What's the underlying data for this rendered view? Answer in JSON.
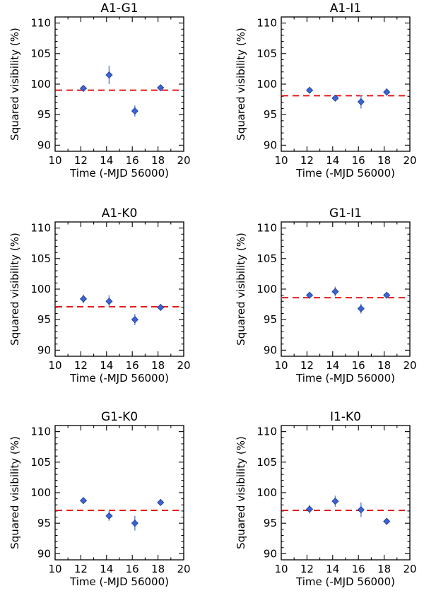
{
  "chart_data": [
    {
      "type": "scatter",
      "title": "A1-G1",
      "xlabel": "Time (-MJD 56000)",
      "ylabel": "Squared visibility (%)",
      "xlim": [
        10,
        20
      ],
      "ylim": [
        89,
        111
      ],
      "xticks": [
        10,
        12,
        14,
        16,
        18,
        20
      ],
      "yticks": [
        90,
        95,
        100,
        105,
        110
      ],
      "reference": 99.0,
      "points": [
        {
          "x": 12.2,
          "y": 99.3,
          "err": 0.3
        },
        {
          "x": 14.2,
          "y": 101.5,
          "err": 1.5
        },
        {
          "x": 16.2,
          "y": 95.6,
          "err": 0.9
        },
        {
          "x": 18.2,
          "y": 99.4,
          "err": 0.3
        }
      ]
    },
    {
      "type": "scatter",
      "title": "A1-I1",
      "xlabel": "Time (-MJD 56000)",
      "ylabel": "Squared visibility (%)",
      "xlim": [
        10,
        20
      ],
      "ylim": [
        89,
        111
      ],
      "xticks": [
        10,
        12,
        14,
        16,
        18,
        20
      ],
      "yticks": [
        90,
        95,
        100,
        105,
        110
      ],
      "reference": 98.1,
      "points": [
        {
          "x": 12.2,
          "y": 99.0,
          "err": 0.5
        },
        {
          "x": 14.2,
          "y": 97.7,
          "err": 0.5
        },
        {
          "x": 16.2,
          "y": 97.1,
          "err": 1.1
        },
        {
          "x": 18.2,
          "y": 98.7,
          "err": 0.6
        }
      ]
    },
    {
      "type": "scatter",
      "title": "A1-K0",
      "xlabel": "Time (-MJD 56000)",
      "ylabel": "Squared visibility (%)",
      "xlim": [
        10,
        20
      ],
      "ylim": [
        89,
        111
      ],
      "xticks": [
        10,
        12,
        14,
        16,
        18,
        20
      ],
      "yticks": [
        90,
        95,
        100,
        105,
        110
      ],
      "reference": 97.1,
      "points": [
        {
          "x": 12.2,
          "y": 98.4,
          "err": 0.7
        },
        {
          "x": 14.2,
          "y": 98.0,
          "err": 1.0
        },
        {
          "x": 16.2,
          "y": 95.0,
          "err": 0.9
        },
        {
          "x": 18.2,
          "y": 97.0,
          "err": 0.5
        }
      ]
    },
    {
      "type": "scatter",
      "title": "G1-I1",
      "xlabel": "Time (-MJD 56000)",
      "ylabel": "Squared visibility (%)",
      "xlim": [
        10,
        20
      ],
      "ylim": [
        89,
        111
      ],
      "xticks": [
        10,
        12,
        14,
        16,
        18,
        20
      ],
      "yticks": [
        90,
        95,
        100,
        105,
        110
      ],
      "reference": 98.6,
      "points": [
        {
          "x": 12.2,
          "y": 99.0,
          "err": 0.3
        },
        {
          "x": 14.2,
          "y": 99.6,
          "err": 0.8
        },
        {
          "x": 16.2,
          "y": 96.8,
          "err": 0.8
        },
        {
          "x": 18.2,
          "y": 99.0,
          "err": 0.3
        }
      ]
    },
    {
      "type": "scatter",
      "title": "G1-K0",
      "xlabel": "Time (-MJD 56000)",
      "ylabel": "Squared visibility (%)",
      "xlim": [
        10,
        20
      ],
      "ylim": [
        89,
        111
      ],
      "xticks": [
        10,
        12,
        14,
        16,
        18,
        20
      ],
      "yticks": [
        90,
        95,
        100,
        105,
        110
      ],
      "reference": 97.1,
      "points": [
        {
          "x": 12.2,
          "y": 98.7,
          "err": 0.3
        },
        {
          "x": 14.2,
          "y": 96.2,
          "err": 0.8
        },
        {
          "x": 16.2,
          "y": 95.0,
          "err": 1.2
        },
        {
          "x": 18.2,
          "y": 98.4,
          "err": 0.3
        }
      ]
    },
    {
      "type": "scatter",
      "title": "I1-K0",
      "xlabel": "Time (-MJD 56000)",
      "ylabel": "Squared visibility (%)",
      "xlim": [
        10,
        20
      ],
      "ylim": [
        89,
        111
      ],
      "xticks": [
        10,
        12,
        14,
        16,
        18,
        20
      ],
      "yticks": [
        90,
        95,
        100,
        105,
        110
      ],
      "reference": 97.1,
      "points": [
        {
          "x": 12.2,
          "y": 97.3,
          "err": 0.7
        },
        {
          "x": 14.2,
          "y": 98.6,
          "err": 0.9
        },
        {
          "x": 16.2,
          "y": 97.2,
          "err": 1.2
        },
        {
          "x": 18.2,
          "y": 95.3,
          "err": 0.3
        }
      ]
    }
  ],
  "colors": {
    "reference_line": "#e41a1c",
    "marker_fill": "#3b64d3",
    "error_bar": "#6f8fd6"
  }
}
